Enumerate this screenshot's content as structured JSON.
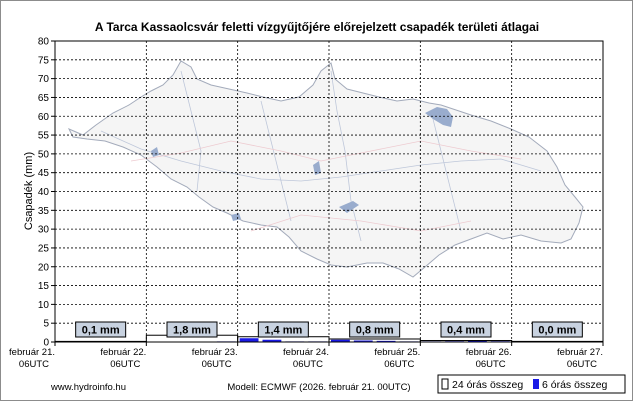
{
  "chart_data": {
    "type": "bar",
    "title": "A Tarca Kassaolcsvár feletti vízgyűjtőjére előrejelzett csapadék területi átlagai",
    "ylabel": "Csapadék (mm)",
    "ylim": [
      0,
      80
    ],
    "yticks": [
      0,
      5,
      10,
      15,
      20,
      25,
      30,
      35,
      40,
      45,
      50,
      55,
      60,
      65,
      70,
      75,
      80
    ],
    "grid": true,
    "x_labels": [
      {
        "line1": "február 21.",
        "line2": "06UTC"
      },
      {
        "line1": "február 22.",
        "line2": "06UTC"
      },
      {
        "line1": "február 23.",
        "line2": "06UTC"
      },
      {
        "line1": "február 24.",
        "line2": "06UTC"
      },
      {
        "line1": "február 25.",
        "line2": "06UTC"
      },
      {
        "line1": "február 26.",
        "line2": "06UTC"
      },
      {
        "line1": "február 27.",
        "line2": "06UTC"
      }
    ],
    "series": [
      {
        "name": "24 órás összeg",
        "values": [
          0.1,
          1.8,
          1.4,
          0.8,
          0.4,
          0.0
        ],
        "labels": [
          "0,1 mm",
          "1,8 mm",
          "1,4 mm",
          "0,8 mm",
          "0,4 mm",
          "0,0 mm"
        ]
      },
      {
        "name": "6 órás összeg",
        "values": [
          0,
          0,
          0,
          0,
          0,
          0,
          0,
          0.1,
          1.0,
          0.6,
          0.1,
          0.1,
          0.6,
          0.4,
          0.3,
          0.1,
          0.1,
          0.2,
          0.3,
          0.2,
          0.1,
          0.1,
          0.1,
          0.1
        ]
      }
    ],
    "legend": "bottom-right",
    "colors": {
      "series_24h": "#000000",
      "series_6h": "#1a1ae6",
      "label_box": "#c8d2e0"
    }
  },
  "footer": {
    "source": "www.hydroinfo.hu",
    "model": "Modell: ECMWF (2026. február 21. 00UTC)"
  }
}
